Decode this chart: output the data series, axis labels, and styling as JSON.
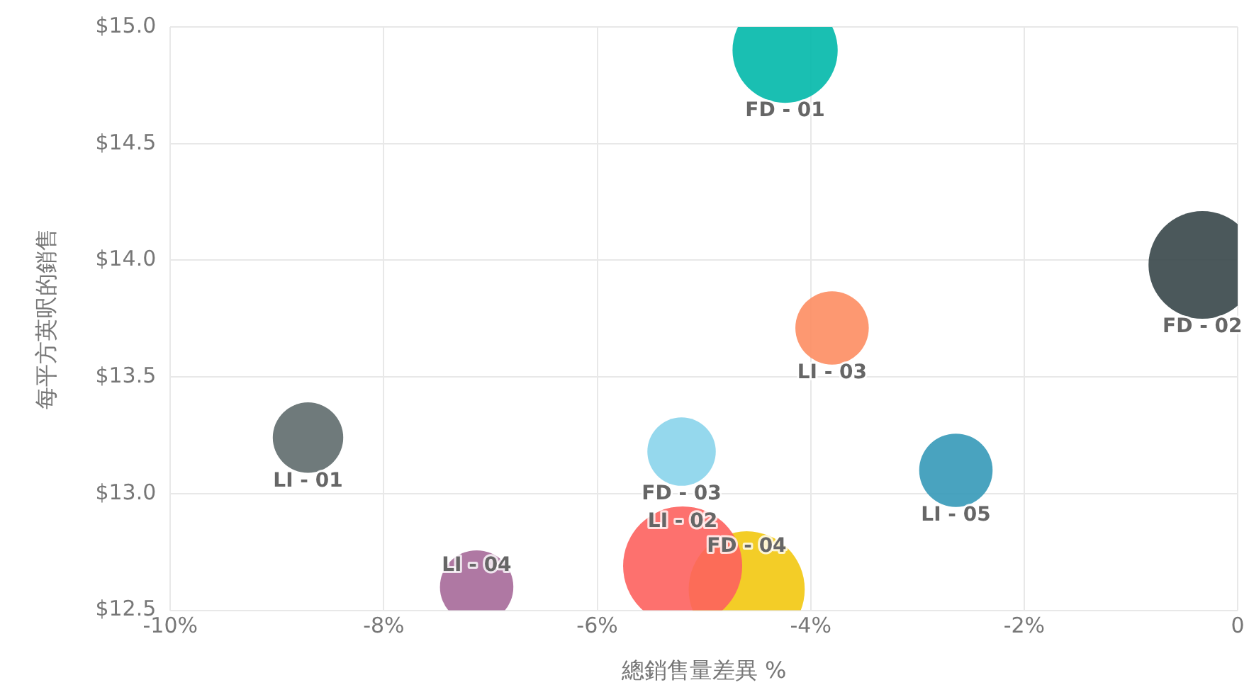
{
  "chart_data": {
    "type": "bubble",
    "xlabel": "總銷售量差異 %",
    "ylabel": "每平方英呎的銷售",
    "xlim": [
      -10,
      0
    ],
    "xticks": [
      {
        "value": -10,
        "label": "-10%"
      },
      {
        "value": -8,
        "label": "-8%"
      },
      {
        "value": -6,
        "label": "-6%"
      },
      {
        "value": -4,
        "label": "-4%"
      },
      {
        "value": -2,
        "label": "-2%"
      },
      {
        "value": 0,
        "label": "0"
      }
    ],
    "ylim": [
      12.5,
      15
    ],
    "yticks": [
      {
        "value": 12.5,
        "label": "$12.5"
      },
      {
        "value": 13,
        "label": "$13.0"
      },
      {
        "value": 13.5,
        "label": "$13.5"
      },
      {
        "value": 14,
        "label": "$14.0"
      },
      {
        "value": 14.5,
        "label": "$14.5"
      },
      {
        "value": 15,
        "label": "$15.0"
      }
    ],
    "grid": true,
    "legend": false,
    "series": [
      {
        "name": "FD - 01",
        "color": "#01b8aa",
        "x": [
          -4.24
        ],
        "values": [
          14.9
        ],
        "sizes": [
          0.78
        ]
      },
      {
        "name": "FD - 02",
        "color": "#374649",
        "x": [
          -0.33
        ],
        "values": [
          13.98
        ],
        "sizes": [
          0.82
        ]
      },
      {
        "name": "LI - 03",
        "color": "#fd8d62",
        "x": [
          -3.8
        ],
        "values": [
          13.71
        ],
        "sizes": [
          0.38
        ]
      },
      {
        "name": "LI - 01",
        "color": "#5f6b6d",
        "x": [
          -8.71
        ],
        "values": [
          13.24
        ],
        "sizes": [
          0.35
        ]
      },
      {
        "name": "FD - 03",
        "color": "#8ad4eb",
        "x": [
          -5.21
        ],
        "values": [
          13.18
        ],
        "sizes": [
          0.33
        ]
      },
      {
        "name": "LI - 05",
        "color": "#3599b8",
        "x": [
          -2.64
        ],
        "values": [
          13.1
        ],
        "sizes": [
          0.38
        ]
      },
      {
        "name": "LI - 04",
        "color": "#a66999",
        "x": [
          -7.13
        ],
        "values": [
          12.6
        ],
        "sizes": [
          0.38
        ]
      },
      {
        "name": "LI - 02",
        "color": "#fd625e",
        "x": [
          -5.2
        ],
        "values": [
          12.69
        ],
        "sizes": [
          1
        ]
      },
      {
        "name": "FD - 04",
        "color": "#f2c80f",
        "x": [
          -4.6
        ],
        "values": [
          12.59
        ],
        "sizes": [
          0.95
        ]
      }
    ]
  }
}
